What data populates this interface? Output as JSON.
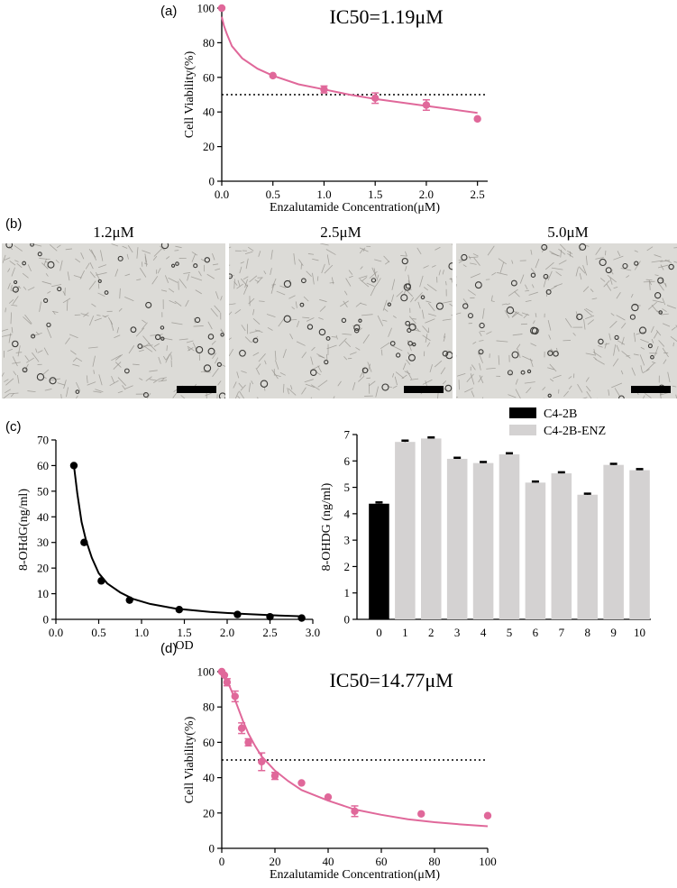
{
  "panels": {
    "a": {
      "letter": "(a)"
    },
    "b": {
      "letter": "(b)",
      "images": [
        {
          "label": "1.2μM"
        },
        {
          "label": "2.5μM"
        },
        {
          "label": "5.0μM"
        }
      ]
    },
    "c": {
      "letter": "(c)"
    },
    "d": {
      "letter": "(d)"
    }
  },
  "chart_data": [
    {
      "id": "a",
      "type": "scatter",
      "annotation": "IC50=1.19μM",
      "xlabel": "Enzalutamide Concentration(μM)",
      "ylabel": "Cell Viability(%)",
      "xlim": [
        0,
        2.6
      ],
      "ylim": [
        0,
        100
      ],
      "xticks": [
        0.0,
        0.5,
        1.0,
        1.5,
        2.0,
        2.5
      ],
      "xtick_labels": [
        "0.0",
        "0.5",
        "1.0",
        "1.5",
        "2.0",
        "2.5"
      ],
      "yticks": [
        0,
        20,
        40,
        60,
        80,
        100
      ],
      "color": "#e0689a",
      "reference_line_y": 50,
      "points": [
        {
          "x": 0.0,
          "y": 100,
          "err": 0
        },
        {
          "x": 0.5,
          "y": 61,
          "err": 0
        },
        {
          "x": 1.0,
          "y": 53,
          "err": 2
        },
        {
          "x": 1.5,
          "y": 48,
          "err": 3
        },
        {
          "x": 2.0,
          "y": 44,
          "err": 3
        },
        {
          "x": 2.5,
          "y": 36,
          "err": 0
        }
      ],
      "fit": {
        "x": [
          0.0,
          0.02,
          0.05,
          0.1,
          0.2,
          0.35,
          0.5,
          0.75,
          1.0,
          1.25,
          1.5,
          1.75,
          2.0,
          2.25,
          2.5
        ],
        "y": [
          95,
          90,
          85,
          78,
          71,
          65,
          61,
          56,
          53,
          50,
          47.5,
          45.5,
          43.5,
          41.5,
          39.5
        ]
      }
    },
    {
      "id": "c-left",
      "type": "scatter",
      "xlabel": "OD",
      "ylabel": "8-OHdG(ng/ml)",
      "xlim": [
        0,
        3.0
      ],
      "ylim": [
        0,
        70
      ],
      "xticks": [
        0.0,
        0.5,
        1.0,
        1.5,
        2.0,
        2.5,
        3.0
      ],
      "xtick_labels": [
        "0.0",
        "0.5",
        "1.0",
        "1.5",
        "2.0",
        "2.5",
        "3.0"
      ],
      "yticks": [
        0,
        10,
        20,
        30,
        40,
        50,
        60,
        70
      ],
      "color": "#000000",
      "points": [
        {
          "x": 0.21,
          "y": 60
        },
        {
          "x": 0.33,
          "y": 30
        },
        {
          "x": 0.53,
          "y": 15
        },
        {
          "x": 0.86,
          "y": 7.5
        },
        {
          "x": 1.44,
          "y": 3.8
        },
        {
          "x": 2.12,
          "y": 1.9
        },
        {
          "x": 2.5,
          "y": 1.0
        },
        {
          "x": 2.87,
          "y": 0.5
        }
      ],
      "fit": {
        "x": [
          0.21,
          0.25,
          0.3,
          0.35,
          0.42,
          0.5,
          0.6,
          0.75,
          0.9,
          1.1,
          1.4,
          1.8,
          2.2,
          2.6,
          2.87
        ],
        "y": [
          60,
          49,
          38,
          31,
          24,
          18,
          14,
          10.5,
          8,
          6,
          4.2,
          2.9,
          2.1,
          1.5,
          1.2
        ]
      }
    },
    {
      "id": "c-right",
      "type": "bar",
      "ylabel": "8-OHDG (ng/ml)",
      "categories": [
        "0",
        "1",
        "2",
        "3",
        "4",
        "5",
        "6",
        "7",
        "8",
        "9",
        "10"
      ],
      "ylim": [
        0,
        7
      ],
      "yticks": [
        0,
        1,
        2,
        3,
        4,
        5,
        6,
        7
      ],
      "values": [
        4.38,
        6.72,
        6.85,
        6.08,
        5.92,
        6.25,
        5.18,
        5.53,
        4.72,
        5.85,
        5.65
      ],
      "errors": [
        0.05,
        0.05,
        0.04,
        0.04,
        0.04,
        0.04,
        0.04,
        0.04,
        0.04,
        0.04,
        0.04
      ],
      "series_colors": [
        "#000000",
        "#d4d2d2"
      ],
      "legend": [
        "C4-2B",
        "C4-2B-ENZ"
      ],
      "legend_position": "top-right"
    },
    {
      "id": "d",
      "type": "scatter",
      "annotation": "IC50=14.77μM",
      "xlabel": "Enzalutamide Concentration(μM)",
      "ylabel": "Cell Viability(%)",
      "xlim": [
        0,
        100
      ],
      "ylim": [
        0,
        100
      ],
      "xticks": [
        0,
        20,
        40,
        60,
        80,
        100
      ],
      "xtick_labels": [
        "0",
        "20",
        "40",
        "60",
        "80",
        "100"
      ],
      "yticks": [
        0,
        20,
        40,
        60,
        80,
        100
      ],
      "color": "#e0689a",
      "reference_line_y": 50,
      "points": [
        {
          "x": 0,
          "y": 100,
          "err": 0
        },
        {
          "x": 1,
          "y": 98,
          "err": 0
        },
        {
          "x": 2,
          "y": 94,
          "err": 2
        },
        {
          "x": 5,
          "y": 86,
          "err": 3
        },
        {
          "x": 7.5,
          "y": 68,
          "err": 3
        },
        {
          "x": 10,
          "y": 60,
          "err": 2
        },
        {
          "x": 15,
          "y": 49,
          "err": 5
        },
        {
          "x": 20,
          "y": 41,
          "err": 2
        },
        {
          "x": 30,
          "y": 37,
          "err": 0
        },
        {
          "x": 40,
          "y": 29,
          "err": 0
        },
        {
          "x": 50,
          "y": 21,
          "err": 3
        },
        {
          "x": 75,
          "y": 19.5,
          "err": 0
        },
        {
          "x": 100,
          "y": 18.5,
          "err": 0
        }
      ],
      "fit": {
        "x": [
          0,
          2,
          4,
          6,
          8,
          10,
          12.5,
          15,
          20,
          25,
          30,
          40,
          50,
          60,
          70,
          80,
          90,
          100
        ],
        "y": [
          100,
          95,
          88,
          80,
          72,
          65,
          58,
          52,
          44,
          38,
          33,
          27,
          22,
          19,
          16.5,
          14.8,
          13.5,
          12.5
        ]
      }
    }
  ]
}
